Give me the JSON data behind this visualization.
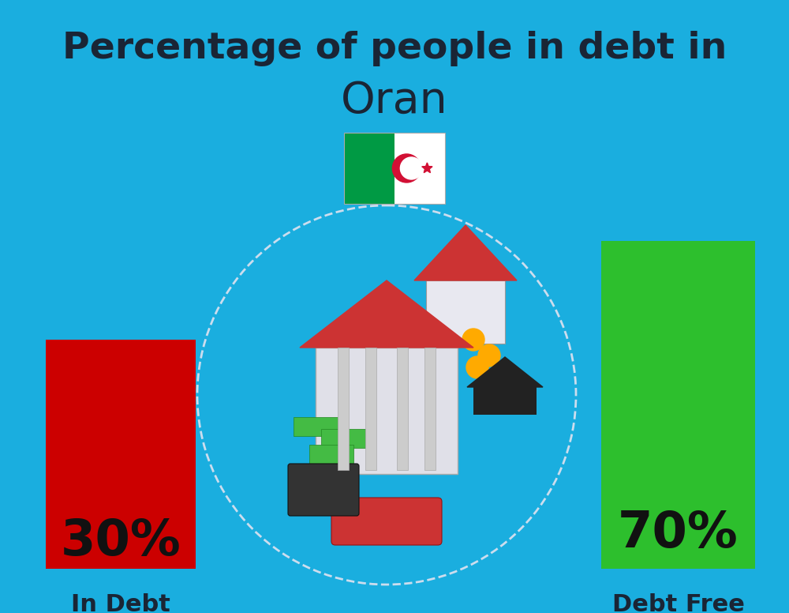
{
  "title_line1": "Percentage of people in debt in",
  "title_line2": "Oran",
  "background_color": "#1AAEDF",
  "bar_left_label": "In Debt",
  "bar_right_label": "Debt Free",
  "bar_left_color": "#CC0000",
  "bar_right_color": "#2DBF2D",
  "bar_left_pct": "30%",
  "bar_right_pct": "70%",
  "text_color": "#1A2535",
  "title_fontsize": 34,
  "subtitle_fontsize": 40,
  "pct_fontsize": 46,
  "label_fontsize": 22,
  "title_fontweight": "bold",
  "label_fontweight": "bold",
  "flag_green": "#009A44",
  "flag_white": "#FFFFFF",
  "flag_red": "#D21034",
  "center_circle_color": "#1AAEDF",
  "center_circle_edge": "#CCDDEE"
}
